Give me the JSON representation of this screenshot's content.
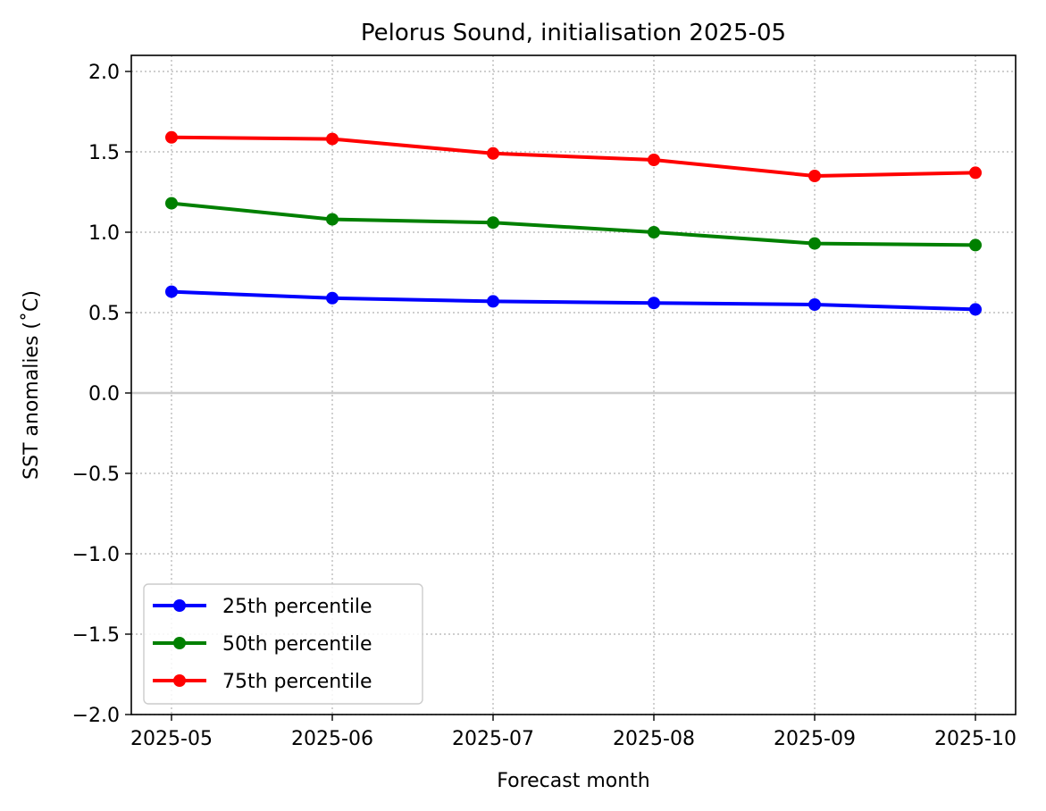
{
  "chart_data": {
    "type": "line",
    "title": "Pelorus Sound, initialisation 2025-05",
    "xlabel": "Forecast month",
    "ylabel": "SST anomalies (˚C)",
    "categories": [
      "2025-05",
      "2025-06",
      "2025-07",
      "2025-08",
      "2025-09",
      "2025-10"
    ],
    "ylim": [
      -2.0,
      2.1
    ],
    "yticks": [
      -2.0,
      -1.5,
      -1.0,
      -0.5,
      0.0,
      0.5,
      1.0,
      1.5,
      2.0
    ],
    "ytick_labels": [
      "−2.0",
      "−1.5",
      "−1.0",
      "−0.5",
      "0.0",
      "0.5",
      "1.0",
      "1.5",
      "2.0"
    ],
    "grid": true,
    "legend_position": "lower-left",
    "zero_line_color": "#cccccc",
    "series": [
      {
        "name": "25th percentile",
        "color": "#0000ff",
        "values": [
          0.63,
          0.59,
          0.57,
          0.56,
          0.55,
          0.52
        ]
      },
      {
        "name": "50th percentile",
        "color": "#008000",
        "values": [
          1.18,
          1.08,
          1.06,
          1.0,
          0.93,
          0.92
        ]
      },
      {
        "name": "75th percentile",
        "color": "#ff0000",
        "values": [
          1.59,
          1.58,
          1.49,
          1.45,
          1.35,
          1.37
        ]
      }
    ]
  }
}
